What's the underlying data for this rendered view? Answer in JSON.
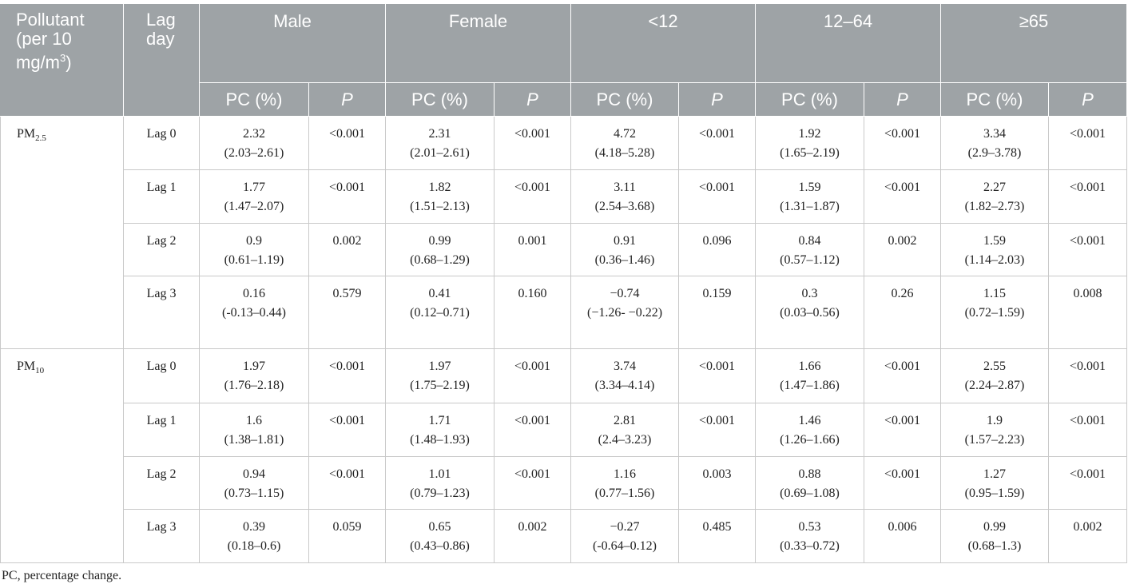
{
  "header": {
    "pollutant": [
      "Pollutant (per 10 mg/m",
      "3",
      ")"
    ],
    "lag_day": "Lag day",
    "groups": [
      "Male",
      "Female",
      "<12",
      "12–64",
      "≥65"
    ],
    "subheaders": [
      "PC (%)",
      "P",
      "PC (%)",
      "P",
      "PC (%)",
      "P",
      "PC (%)",
      "P",
      "PC (%)",
      "P"
    ]
  },
  "table": {
    "rows": [
      {
        "pollutant": {
          "base": "PM",
          "sub": "2.5"
        },
        "lags": [
          {
            "lag": "Lag 0",
            "cells": [
              {
                "pc": "2.32",
                "ci": "(2.03–2.61)",
                "p": "<0.001"
              },
              {
                "pc": "2.31",
                "ci": "(2.01–2.61)",
                "p": "<0.001"
              },
              {
                "pc": "4.72",
                "ci": "(4.18–5.28)",
                "p": "<0.001"
              },
              {
                "pc": "1.92",
                "ci": "(1.65–2.19)",
                "p": "<0.001"
              },
              {
                "pc": "3.34",
                "ci": "(2.9–3.78)",
                "p": "<0.001"
              }
            ]
          },
          {
            "lag": "Lag 1",
            "cells": [
              {
                "pc": "1.77",
                "ci": "(1.47–2.07)",
                "p": "<0.001"
              },
              {
                "pc": "1.82",
                "ci": "(1.51–2.13)",
                "p": "<0.001"
              },
              {
                "pc": "3.11",
                "ci": "(2.54–3.68)",
                "p": "<0.001"
              },
              {
                "pc": "1.59",
                "ci": "(1.31–1.87)",
                "p": "<0.001"
              },
              {
                "pc": "2.27",
                "ci": "(1.82–2.73)",
                "p": "<0.001"
              }
            ]
          },
          {
            "lag": "Lag 2",
            "cells": [
              {
                "pc": "0.9",
                "ci": "(0.61–1.19)",
                "p": "0.002"
              },
              {
                "pc": "0.99",
                "ci": "(0.68–1.29)",
                "p": "0.001"
              },
              {
                "pc": "0.91",
                "ci": "(0.36–1.46)",
                "p": "0.096"
              },
              {
                "pc": "0.84",
                "ci": "(0.57–1.12)",
                "p": "0.002"
              },
              {
                "pc": "1.59",
                "ci": "(1.14–2.03)",
                "p": "<0.001"
              }
            ]
          },
          {
            "lag": "Lag 3",
            "cells": [
              {
                "pc": "0.16",
                "ci": "(-0.13–0.44)",
                "p": "0.579"
              },
              {
                "pc": "0.41",
                "ci": "(0.12–0.71)",
                "p": "0.160"
              },
              {
                "pc": "−0.74",
                "ci": "(−1.26- −0.22)",
                "p": "0.159"
              },
              {
                "pc": "0.3",
                "ci": "(0.03–0.56)",
                "p": "0.26"
              },
              {
                "pc": "1.15",
                "ci": "(0.72–1.59)",
                "p": "0.008"
              }
            ]
          }
        ]
      },
      {
        "pollutant": {
          "base": "PM",
          "sub": "10"
        },
        "lags": [
          {
            "lag": "Lag 0",
            "cells": [
              {
                "pc": "1.97",
                "ci": "(1.76–2.18)",
                "p": "<0.001"
              },
              {
                "pc": "1.97",
                "ci": "(1.75–2.19)",
                "p": "<0.001"
              },
              {
                "pc": "3.74",
                "ci": "(3.34–4.14)",
                "p": "<0.001"
              },
              {
                "pc": "1.66",
                "ci": "(1.47–1.86)",
                "p": "<0.001"
              },
              {
                "pc": "2.55",
                "ci": "(2.24–2.87)",
                "p": "<0.001"
              }
            ]
          },
          {
            "lag": "Lag 1",
            "cells": [
              {
                "pc": "1.6",
                "ci": "(1.38–1.81)",
                "p": "<0.001"
              },
              {
                "pc": "1.71",
                "ci": "(1.48–1.93)",
                "p": "<0.001"
              },
              {
                "pc": "2.81",
                "ci": "(2.4–3.23)",
                "p": "<0.001"
              },
              {
                "pc": "1.46",
                "ci": "(1.26–1.66)",
                "p": "<0.001"
              },
              {
                "pc": "1.9",
                "ci": "(1.57–2.23)",
                "p": "<0.001"
              }
            ]
          },
          {
            "lag": "Lag 2",
            "cells": [
              {
                "pc": "0.94",
                "ci": "(0.73–1.15)",
                "p": "<0.001"
              },
              {
                "pc": "1.01",
                "ci": "(0.79–1.23)",
                "p": "<0.001"
              },
              {
                "pc": "1.16",
                "ci": "(0.77–1.56)",
                "p": "0.003"
              },
              {
                "pc": "0.88",
                "ci": "(0.69–1.08)",
                "p": "<0.001"
              },
              {
                "pc": "1.27",
                "ci": "(0.95–1.59)",
                "p": "<0.001"
              }
            ]
          },
          {
            "lag": "Lag 3",
            "cells": [
              {
                "pc": "0.39",
                "ci": "(0.18–0.6)",
                "p": "0.059"
              },
              {
                "pc": "0.65",
                "ci": "(0.43–0.86)",
                "p": "0.002"
              },
              {
                "pc": "−0.27",
                "ci": "(-0.64–0.12)",
                "p": "0.485"
              },
              {
                "pc": "0.53",
                "ci": "(0.33–0.72)",
                "p": "0.006"
              },
              {
                "pc": "0.99",
                "ci": "(0.68–1.3)",
                "p": "0.002"
              }
            ]
          }
        ]
      }
    ]
  },
  "footnote": "PC, percentage change."
}
